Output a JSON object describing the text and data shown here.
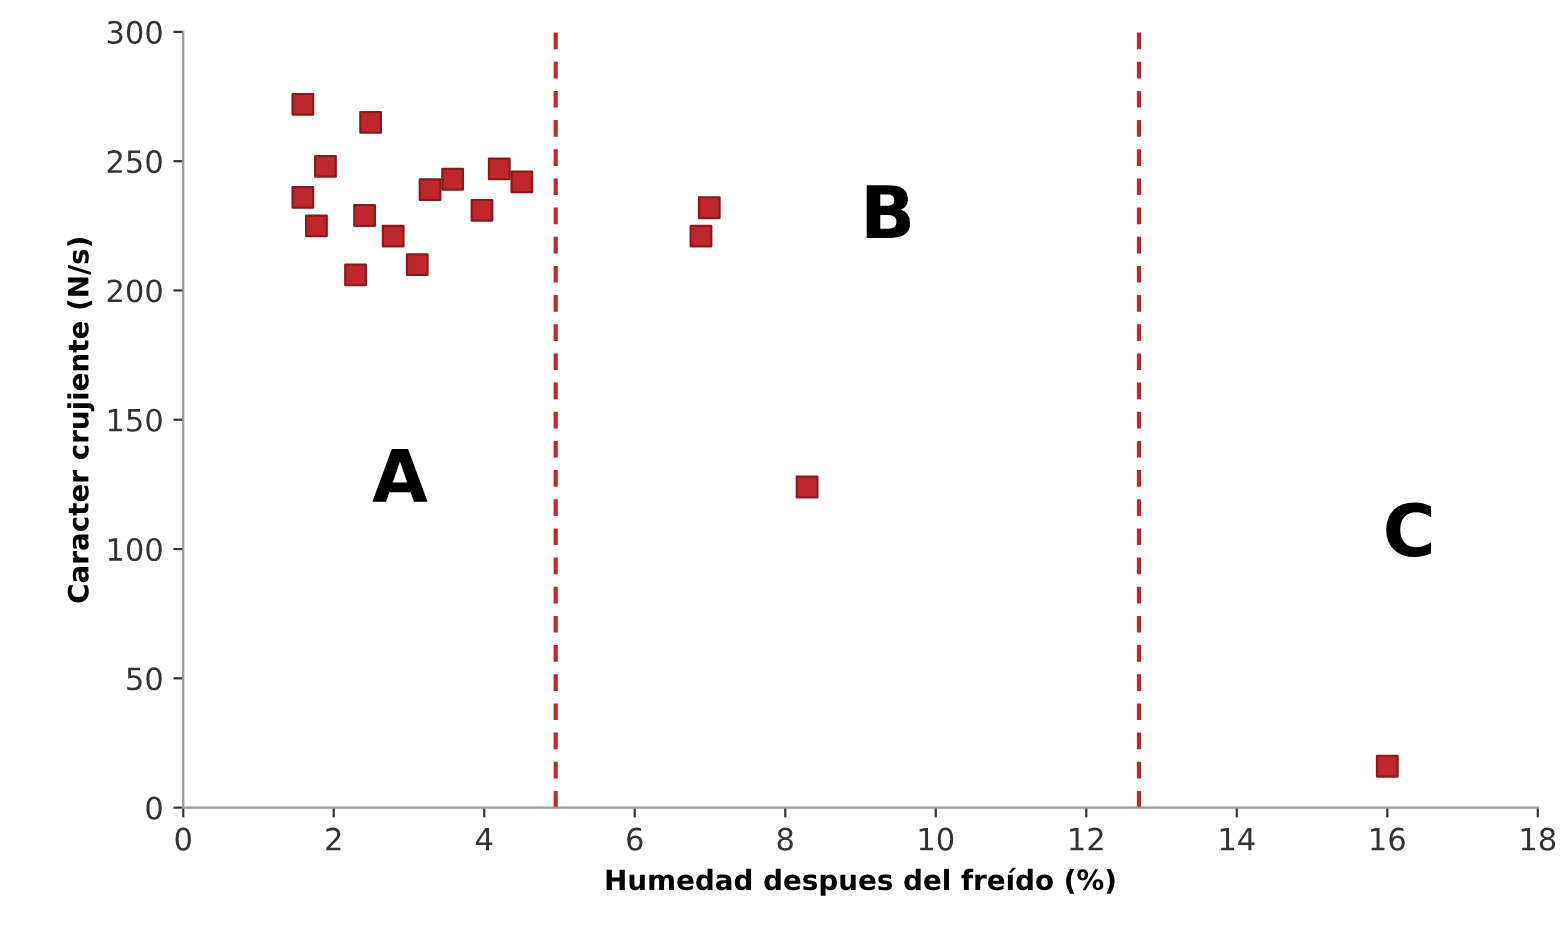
{
  "chart_data": {
    "type": "scatter",
    "xlabel": "Humedad despues del freído (%)",
    "ylabel": "Caracter crujiente (N/s)",
    "x": [
      1.59,
      2.49,
      1.89,
      1.59,
      1.77,
      2.41,
      2.29,
      2.79,
      3.11,
      3.28,
      3.58,
      3.97,
      4.2,
      4.5,
      6.99,
      6.88,
      8.29,
      16.0
    ],
    "series": [
      {
        "color": "#c0272d",
        "values": [
          272,
          265,
          248,
          236,
          225,
          229,
          206,
          221,
          210,
          239,
          243,
          231,
          247,
          242,
          232,
          221,
          124,
          16
        ]
      }
    ],
    "marker": "square",
    "xlim": [
      0,
      18
    ],
    "ylim": [
      0,
      300
    ],
    "xticks": [
      0,
      2,
      4,
      6,
      8,
      10,
      12,
      14,
      16,
      18
    ],
    "yticks": [
      0,
      50,
      100,
      150,
      200,
      250,
      300
    ],
    "grid": false,
    "ref_lines": [
      {
        "axis": "x",
        "value": 4.95,
        "color": "#c0272d",
        "line_style": "dashed"
      },
      {
        "axis": "x",
        "value": 12.7,
        "color": "#c0272d",
        "line_style": "dashed"
      }
    ],
    "annotations": [
      "A",
      "B",
      "C"
    ]
  }
}
